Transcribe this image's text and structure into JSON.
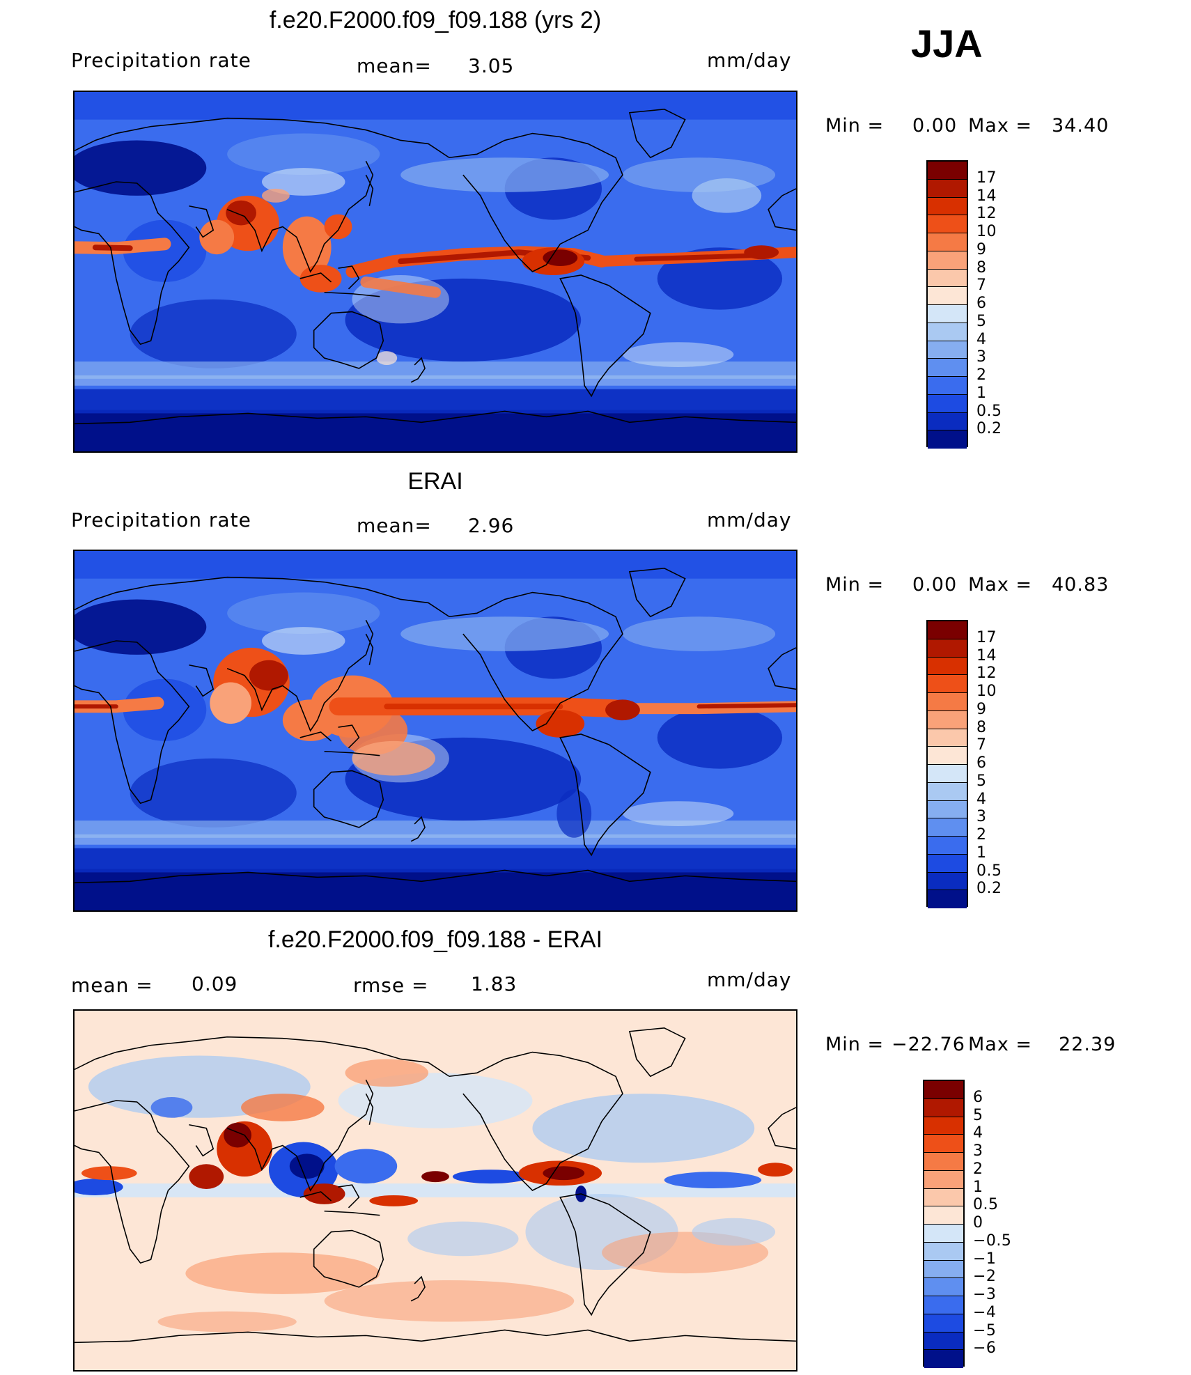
{
  "season": "JJA",
  "panels": [
    {
      "title": "f.e20.F2000.f09_f09.188 (yrs 2)",
      "left_label": "Precipitation  rate",
      "mid_label": "mean=",
      "mid_value": "3.05",
      "units": "mm/day",
      "min_label": "Min  =",
      "min_value": "0.00",
      "max_label": "Max  =",
      "max_value": "34.40",
      "field_kind": "model"
    },
    {
      "title": "ERAI",
      "left_label": "Precipitation  rate",
      "mid_label": "mean=",
      "mid_value": "2.96",
      "units": "mm/day",
      "min_label": "Min  =",
      "min_value": "0.00",
      "max_label": "Max  =",
      "max_value": "40.83",
      "field_kind": "obs"
    },
    {
      "title": "f.e20.F2000.f09_f09.188 - ERAI",
      "left_label": "mean  =",
      "left_value": "0.09",
      "mid_label": "rmse  =",
      "mid_value": "1.83",
      "units": "mm/day",
      "min_label": "Min  =",
      "min_value": "−22.76",
      "max_label": "Max  =",
      "max_value": "22.39",
      "field_kind": "diff"
    }
  ],
  "colorbars": {
    "precip": {
      "labels": [
        "17",
        "14",
        "12",
        "10",
        "9",
        "8",
        "7",
        "6",
        "5",
        "4",
        "3",
        "2",
        "1",
        "0.5",
        "0.2"
      ],
      "colors": [
        "#7a0000",
        "#b01800",
        "#d83000",
        "#ee5018",
        "#f57a45",
        "#f9a279",
        "#fbc8ab",
        "#fde6d6",
        "#d4e6f8",
        "#aac9f2",
        "#86aef0",
        "#5f8ff0",
        "#3a6cee",
        "#1d4be2",
        "#0a2cc0",
        "#00108a"
      ]
    },
    "diff": {
      "labels": [
        "6",
        "5",
        "4",
        "3",
        "2",
        "1",
        "0.5",
        "0",
        "−0.5",
        "−1",
        "−2",
        "−3",
        "−4",
        "−5",
        "−6"
      ],
      "colors": [
        "#7a0000",
        "#b01800",
        "#d83000",
        "#ee5018",
        "#f57a45",
        "#f9a279",
        "#fbc8ab",
        "#fde6d6",
        "#d4e6f8",
        "#aac9f2",
        "#86aef0",
        "#5f8ff0",
        "#3a6cee",
        "#1d4be2",
        "#0a2cc0",
        "#00108a"
      ]
    }
  }
}
